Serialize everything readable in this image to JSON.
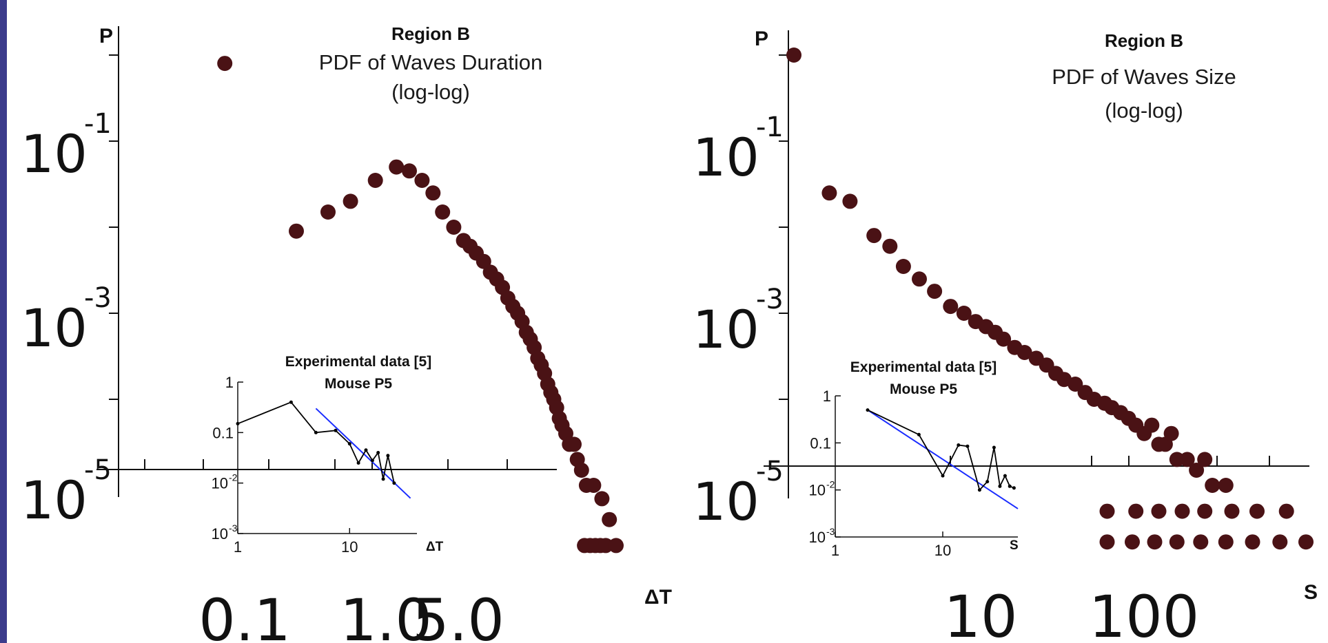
{
  "colors": {
    "points": "#4a1215",
    "axis": "#111111",
    "inset_fit": "#1a2cff",
    "inset_data": "#000000",
    "side_bar": "#3c3c8c"
  },
  "chart_data": [
    {
      "type": "scatter",
      "region": "Region B",
      "title": "PDF of Waves Duration",
      "subtitle": "(log-log)",
      "xlabel": "ΔT",
      "ylabel": "P",
      "x_scale": "log",
      "y_scale": "log",
      "xlim": [
        0.03,
        18
      ],
      "ylim": [
        1e-06,
        2
      ],
      "x_ticks": [
        {
          "value": 0.1,
          "label": "0.1"
        },
        {
          "value": 1.0,
          "label": "1.0"
        },
        {
          "value": 5.0,
          "label": "5.0"
        }
      ],
      "y_ticks": [
        {
          "mantissa": "10",
          "exp": "-1",
          "value": 0.1
        },
        {
          "mantissa": "10",
          "exp": "-3",
          "value": 0.001
        },
        {
          "mantissa": "10",
          "exp": "-5",
          "value": 1e-05
        }
      ],
      "points": [
        {
          "x": 0.08,
          "y": 0.8
        },
        {
          "x": 0.2,
          "y": 0.009
        },
        {
          "x": 0.3,
          "y": 0.015
        },
        {
          "x": 0.4,
          "y": 0.02
        },
        {
          "x": 0.55,
          "y": 0.035
        },
        {
          "x": 0.72,
          "y": 0.05
        },
        {
          "x": 0.85,
          "y": 0.045
        },
        {
          "x": 1.0,
          "y": 0.035
        },
        {
          "x": 1.15,
          "y": 0.025
        },
        {
          "x": 1.3,
          "y": 0.015
        },
        {
          "x": 1.5,
          "y": 0.01
        },
        {
          "x": 1.7,
          "y": 0.007
        },
        {
          "x": 1.85,
          "y": 0.006
        },
        {
          "x": 2.0,
          "y": 0.005
        },
        {
          "x": 2.2,
          "y": 0.004
        },
        {
          "x": 2.4,
          "y": 0.003
        },
        {
          "x": 2.6,
          "y": 0.0025
        },
        {
          "x": 2.8,
          "y": 0.002
        },
        {
          "x": 3.0,
          "y": 0.0015
        },
        {
          "x": 3.2,
          "y": 0.0012
        },
        {
          "x": 3.4,
          "y": 0.001
        },
        {
          "x": 3.6,
          "y": 0.0008
        },
        {
          "x": 3.8,
          "y": 0.0006
        },
        {
          "x": 4.0,
          "y": 0.0005
        },
        {
          "x": 4.2,
          "y": 0.0004
        },
        {
          "x": 4.4,
          "y": 0.0003
        },
        {
          "x": 4.6,
          "y": 0.00025
        },
        {
          "x": 4.8,
          "y": 0.0002
        },
        {
          "x": 5.0,
          "y": 0.00015
        },
        {
          "x": 5.2,
          "y": 0.00012
        },
        {
          "x": 5.4,
          "y": 0.0001
        },
        {
          "x": 5.6,
          "y": 8e-05
        },
        {
          "x": 5.8,
          "y": 6e-05
        },
        {
          "x": 6.0,
          "y": 5e-05
        },
        {
          "x": 6.3,
          "y": 4e-05
        },
        {
          "x": 6.6,
          "y": 3e-05
        },
        {
          "x": 7.0,
          "y": 3e-05
        },
        {
          "x": 7.3,
          "y": 2e-05
        },
        {
          "x": 7.7,
          "y": 1.5e-05
        },
        {
          "x": 8.2,
          "y": 1e-05
        },
        {
          "x": 9.0,
          "y": 1e-05
        },
        {
          "x": 10.0,
          "y": 7e-06
        },
        {
          "x": 11.0,
          "y": 4e-06
        },
        {
          "x": 8.0,
          "y": 2e-06
        },
        {
          "x": 8.6,
          "y": 2e-06
        },
        {
          "x": 9.2,
          "y": 2e-06
        },
        {
          "x": 9.8,
          "y": 2e-06
        },
        {
          "x": 10.5,
          "y": 2e-06
        },
        {
          "x": 12.0,
          "y": 2e-06
        }
      ],
      "inset": {
        "title_line1": "Experimental data [5]",
        "title_line2": "Mouse P5",
        "xlabel": "ΔT",
        "x_ticks": [
          {
            "value": 1,
            "label": "1"
          },
          {
            "value": 10,
            "label": "10"
          }
        ],
        "y_ticks": [
          {
            "value": 1,
            "label": "1"
          },
          {
            "value": 0.1,
            "label": "0.1"
          },
          {
            "value": 0.01,
            "mantissa": "10",
            "exp": "-2"
          },
          {
            "value": 0.001,
            "mantissa": "10",
            "exp": "-3"
          }
        ],
        "xlim": [
          1,
          40
        ],
        "ylim": [
          0.001,
          1
        ],
        "data": [
          [
            1,
            0.15
          ],
          [
            3,
            0.4
          ],
          [
            5,
            0.1
          ],
          [
            7.5,
            0.11
          ],
          [
            10,
            0.06
          ],
          [
            12,
            0.025
          ],
          [
            14,
            0.045
          ],
          [
            16,
            0.028
          ],
          [
            18,
            0.04
          ],
          [
            20,
            0.012
          ],
          [
            22,
            0.035
          ],
          [
            25,
            0.01
          ]
        ],
        "fit": [
          [
            5,
            0.3
          ],
          [
            35,
            0.005
          ]
        ]
      }
    },
    {
      "type": "scatter",
      "region": "Region B",
      "title": "PDF of Waves Size",
      "subtitle": "(log-log)",
      "xlabel": "S",
      "ylabel": "P",
      "x_scale": "log",
      "y_scale": "log",
      "xlim": [
        0.9,
        500
      ],
      "ylim": [
        1e-06,
        2
      ],
      "x_ticks": [
        {
          "value": 10,
          "label": "10"
        },
        {
          "value": 100,
          "label": "100"
        }
      ],
      "y_ticks": [
        {
          "mantissa": "10",
          "exp": "-1",
          "value": 0.1
        },
        {
          "mantissa": "10",
          "exp": "-3",
          "value": 0.001
        },
        {
          "mantissa": "10",
          "exp": "-5",
          "value": 1e-05
        }
      ],
      "points": [
        {
          "x": 1,
          "y": 1.0
        },
        {
          "x": 1.5,
          "y": 0.025
        },
        {
          "x": 1.9,
          "y": 0.02
        },
        {
          "x": 2.5,
          "y": 0.008
        },
        {
          "x": 3.0,
          "y": 0.006
        },
        {
          "x": 3.5,
          "y": 0.0035
        },
        {
          "x": 4.2,
          "y": 0.0025
        },
        {
          "x": 5.0,
          "y": 0.0018
        },
        {
          "x": 6.0,
          "y": 0.0012
        },
        {
          "x": 7.0,
          "y": 0.001
        },
        {
          "x": 8.0,
          "y": 0.0008
        },
        {
          "x": 9.0,
          "y": 0.0007
        },
        {
          "x": 10.0,
          "y": 0.0006
        },
        {
          "x": 11.0,
          "y": 0.0005
        },
        {
          "x": 12.5,
          "y": 0.0004
        },
        {
          "x": 14.0,
          "y": 0.00035
        },
        {
          "x": 16.0,
          "y": 0.0003
        },
        {
          "x": 18.0,
          "y": 0.00025
        },
        {
          "x": 20.0,
          "y": 0.0002
        },
        {
          "x": 22.0,
          "y": 0.00017
        },
        {
          "x": 25.0,
          "y": 0.00015
        },
        {
          "x": 28.0,
          "y": 0.00012
        },
        {
          "x": 31.0,
          "y": 0.0001
        },
        {
          "x": 35.0,
          "y": 9e-05
        },
        {
          "x": 38.0,
          "y": 8e-05
        },
        {
          "x": 42.0,
          "y": 7e-05
        },
        {
          "x": 46.0,
          "y": 6e-05
        },
        {
          "x": 50.0,
          "y": 5e-05
        },
        {
          "x": 55.0,
          "y": 4e-05
        },
        {
          "x": 60.0,
          "y": 5e-05
        },
        {
          "x": 65.0,
          "y": 3e-05
        },
        {
          "x": 70.0,
          "y": 3e-05
        },
        {
          "x": 75.0,
          "y": 4e-05
        },
        {
          "x": 80.0,
          "y": 2e-05
        },
        {
          "x": 90.0,
          "y": 2e-05
        },
        {
          "x": 100.0,
          "y": 1.5e-05
        },
        {
          "x": 110.0,
          "y": 2e-05
        },
        {
          "x": 120.0,
          "y": 1e-05
        },
        {
          "x": 140.0,
          "y": 1e-05
        },
        {
          "x": 36.0,
          "y": 5e-06
        },
        {
          "x": 50.0,
          "y": 5e-06
        },
        {
          "x": 65.0,
          "y": 5e-06
        },
        {
          "x": 85.0,
          "y": 5e-06
        },
        {
          "x": 110.0,
          "y": 5e-06
        },
        {
          "x": 150.0,
          "y": 5e-06
        },
        {
          "x": 200.0,
          "y": 5e-06
        },
        {
          "x": 280.0,
          "y": 5e-06
        },
        {
          "x": 36.0,
          "y": 2.2e-06
        },
        {
          "x": 48.0,
          "y": 2.2e-06
        },
        {
          "x": 62.0,
          "y": 2.2e-06
        },
        {
          "x": 80.0,
          "y": 2.2e-06
        },
        {
          "x": 105.0,
          "y": 2.2e-06
        },
        {
          "x": 140.0,
          "y": 2.2e-06
        },
        {
          "x": 190.0,
          "y": 2.2e-06
        },
        {
          "x": 260.0,
          "y": 2.2e-06
        },
        {
          "x": 350.0,
          "y": 2.2e-06
        }
      ],
      "inset": {
        "title_line1": "Experimental data [5]",
        "title_line2": "Mouse P5",
        "xlabel": "S",
        "x_ticks": [
          {
            "value": 1,
            "label": "1"
          },
          {
            "value": 10,
            "label": "10"
          }
        ],
        "y_ticks": [
          {
            "value": 1,
            "label": "1"
          },
          {
            "value": 0.1,
            "label": "0.1"
          },
          {
            "value": 0.01,
            "mantissa": "10",
            "exp": "-2"
          },
          {
            "value": 0.001,
            "mantissa": "10",
            "exp": "-3"
          }
        ],
        "xlim": [
          1,
          50
        ],
        "ylim": [
          0.001,
          1
        ],
        "data": [
          [
            2,
            0.5
          ],
          [
            6,
            0.15
          ],
          [
            10,
            0.02
          ],
          [
            14,
            0.09
          ],
          [
            17,
            0.085
          ],
          [
            22,
            0.01
          ],
          [
            26,
            0.015
          ],
          [
            30,
            0.08
          ],
          [
            34,
            0.012
          ],
          [
            38,
            0.02
          ],
          [
            42,
            0.012
          ],
          [
            46,
            0.011
          ]
        ],
        "fit": [
          [
            2,
            0.5
          ],
          [
            50,
            0.004
          ]
        ]
      }
    }
  ]
}
